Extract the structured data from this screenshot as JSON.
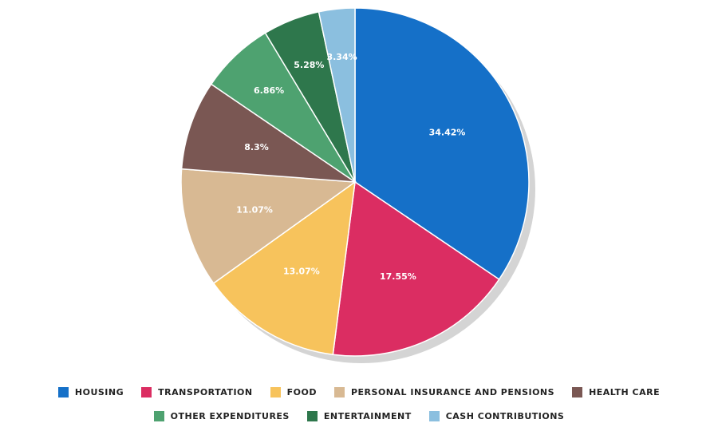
{
  "chart_data": {
    "type": "pie",
    "slices": [
      {
        "label": "HOUSING",
        "value": 34.42,
        "display": "34.42%",
        "color": "#1570c8"
      },
      {
        "label": "TRANSPORTATION",
        "value": 17.55,
        "display": "17.55%",
        "color": "#db2d62"
      },
      {
        "label": "FOOD",
        "value": 13.07,
        "display": "13.07%",
        "color": "#f7c35c"
      },
      {
        "label": "PERSONAL INSURANCE AND PENSIONS",
        "value": 11.07,
        "display": "11.07%",
        "color": "#d8b993"
      },
      {
        "label": "HEALTH CARE",
        "value": 8.3,
        "display": "8.3%",
        "color": "#7a5753"
      },
      {
        "label": "OTHER EXPENDITURES",
        "value": 6.86,
        "display": "6.86%",
        "color": "#4ea270"
      },
      {
        "label": "ENTERTAINMENT",
        "value": 5.28,
        "display": "5.28%",
        "color": "#2e774c"
      },
      {
        "label": "CASH CONTRIBUTIONS",
        "value": 3.34,
        "display": "3.34%",
        "color": "#8bbfdf"
      }
    ],
    "start_angle": "12 o'clock",
    "direction": "clockwise",
    "legend_position": "bottom",
    "shadow_color": "#d4d4d4"
  },
  "legend": {
    "row1": [
      "HOUSING",
      "TRANSPORTATION",
      "FOOD",
      "PERSONAL INSURANCE AND PENSIONS",
      "HEALTH CARE"
    ],
    "row2": [
      "OTHER EXPENDITURES",
      "ENTERTAINMENT",
      "CASH CONTRIBUTIONS"
    ]
  }
}
